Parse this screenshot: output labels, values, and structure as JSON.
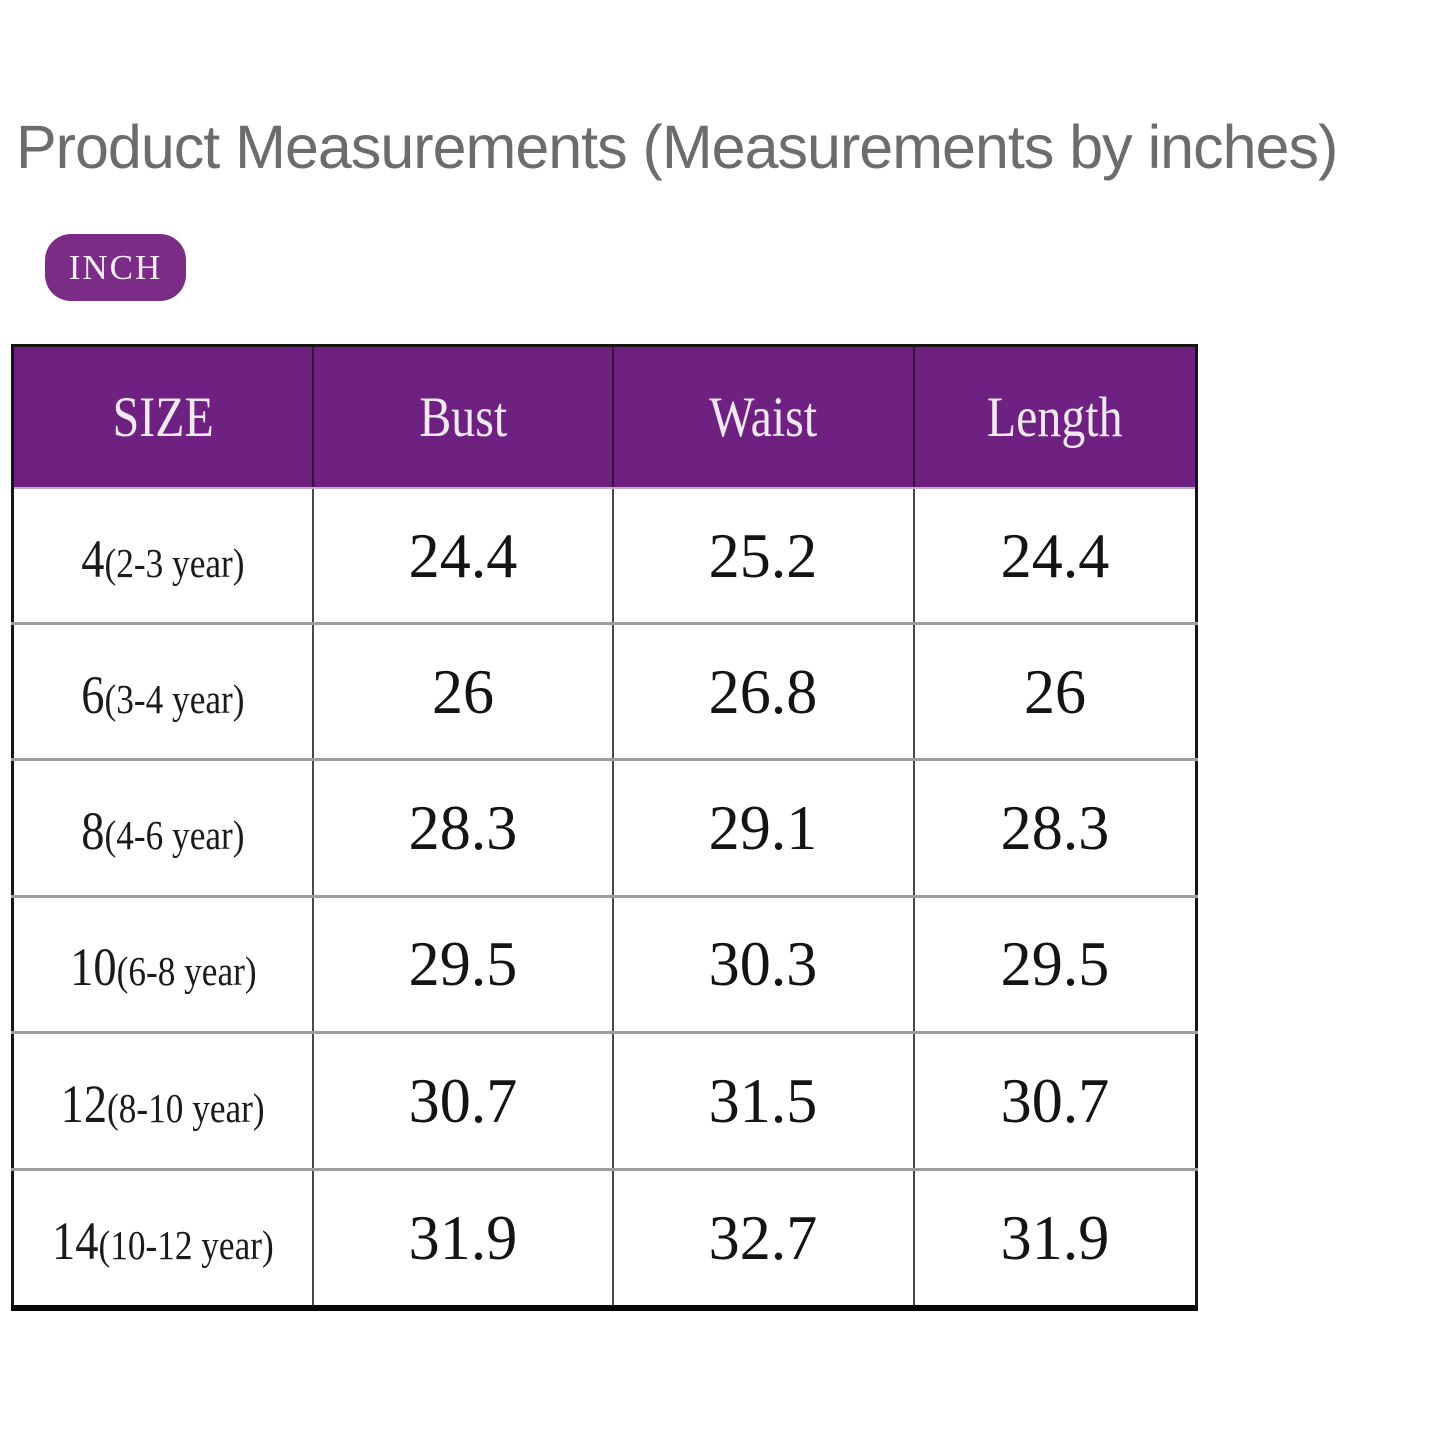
{
  "page": {
    "title": "Product Measurements (Measurements by inches)",
    "unit_badge_label": "INCH"
  },
  "colors": {
    "title_gray": "#6C6C6C",
    "table_header_purple": "#6E2180",
    "badge_purple": "#7B2C86",
    "header_text": "#F2E8F4"
  },
  "table": {
    "headers": [
      "SIZE",
      "Bust",
      "Waist",
      "Length"
    ],
    "rows": [
      {
        "size": "4",
        "age": "(2-3 year)",
        "bust": "24.4",
        "waist": "25.2",
        "length": "24.4"
      },
      {
        "size": "6",
        "age": "(3-4 year)",
        "bust": "26",
        "waist": "26.8",
        "length": "26"
      },
      {
        "size": "8",
        "age": "(4-6 year)",
        "bust": "28.3",
        "waist": "29.1",
        "length": "28.3"
      },
      {
        "size": "10",
        "age": "(6-8 year)",
        "bust": "29.5",
        "waist": "30.3",
        "length": "29.5"
      },
      {
        "size": "12",
        "age": "(8-10 year)",
        "bust": "30.7",
        "waist": "31.5",
        "length": "30.7"
      },
      {
        "size": "14",
        "age": "(10-12 year)",
        "bust": "31.9",
        "waist": "32.7",
        "length": "31.9"
      }
    ]
  }
}
